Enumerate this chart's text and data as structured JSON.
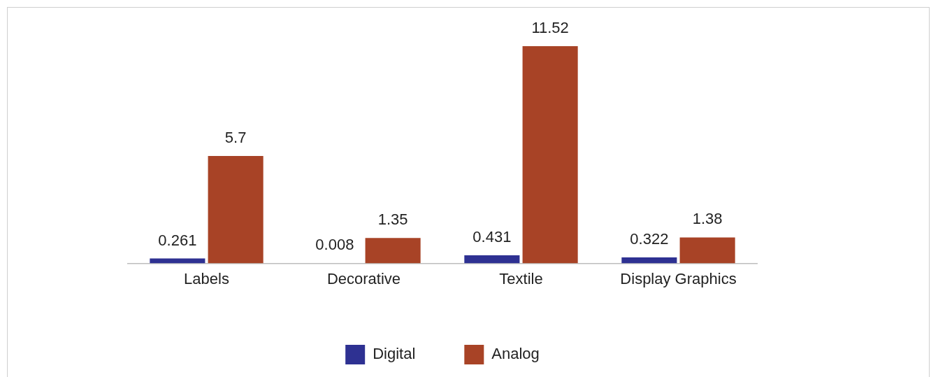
{
  "chart_data": {
    "type": "bar",
    "categories": [
      "Labels",
      "Decorative",
      "Textile",
      "Display Graphics"
    ],
    "series": [
      {
        "name": "Digital",
        "color": "#2e3192",
        "values": [
          0.261,
          0.008,
          0.431,
          0.322
        ]
      },
      {
        "name": "Analog",
        "color": "#a84326",
        "values": [
          5.7,
          1.35,
          11.52,
          1.38
        ]
      }
    ],
    "data_labels": true,
    "legend": "bottom",
    "grid": false
  }
}
